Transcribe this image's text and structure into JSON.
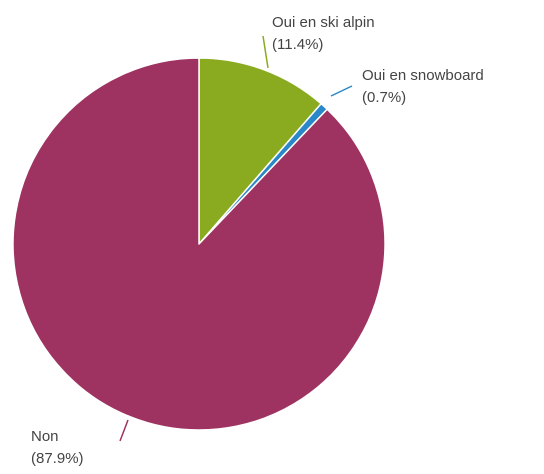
{
  "chart_data": {
    "type": "pie",
    "slices": [
      {
        "label": "Oui en ski alpin",
        "percent_label": "(11.4%)",
        "value": 11.4,
        "color": "#8aab1f"
      },
      {
        "label": "Oui en snowboard",
        "percent_label": "(0.7%)",
        "value": 0.7,
        "color": "#2a87c8"
      },
      {
        "label": "Non",
        "percent_label": "(87.9%)",
        "value": 87.9,
        "color": "#9e3361"
      }
    ],
    "start_angle_deg": 0,
    "direction": "clockwise",
    "legend": "none"
  }
}
